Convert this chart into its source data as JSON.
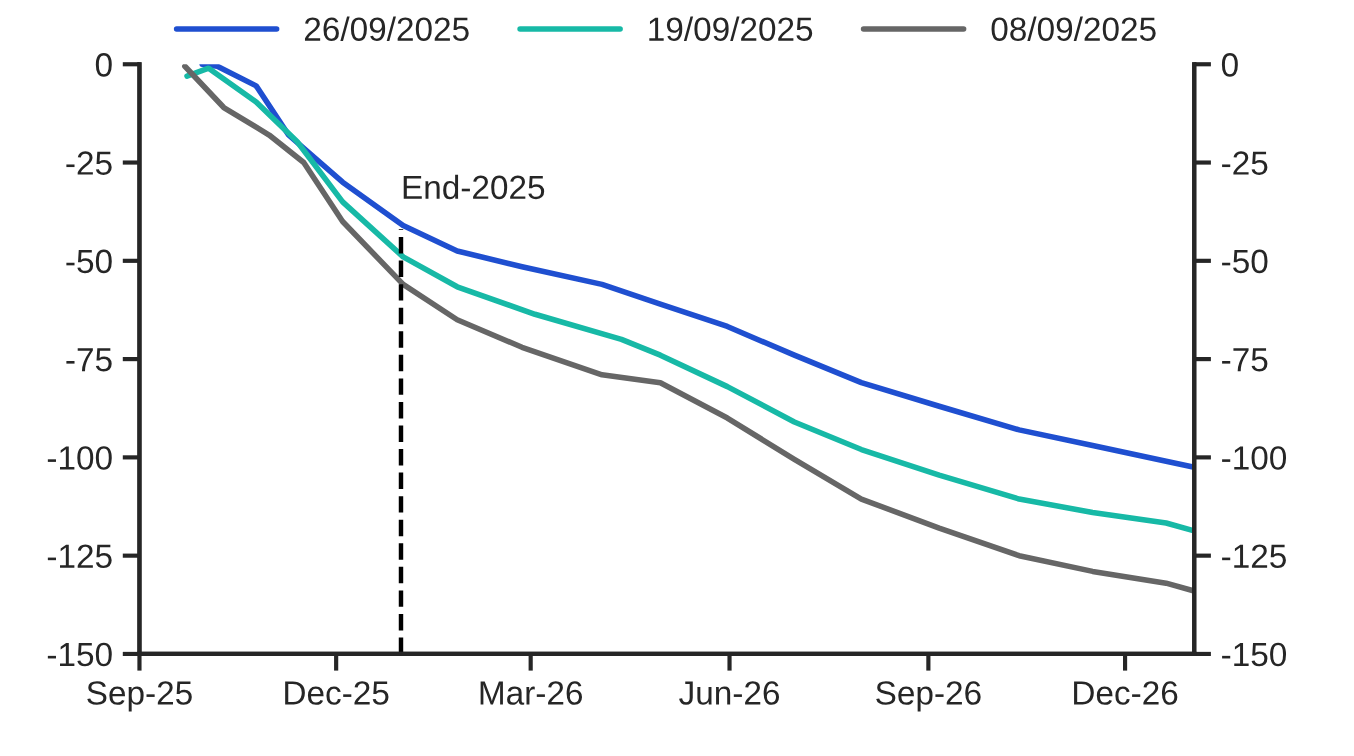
{
  "chart_data": {
    "type": "line",
    "xlim": [
      "2025-09-01",
      "2027-01-02"
    ],
    "xticks": [
      {
        "value": "2025-09-01",
        "label": "Sep-25"
      },
      {
        "value": "2025-12-01",
        "label": "Dec-25"
      },
      {
        "value": "2026-03-01",
        "label": "Mar-26"
      },
      {
        "value": "2026-06-01",
        "label": "Jun-26"
      },
      {
        "value": "2026-09-01",
        "label": "Sep-26"
      },
      {
        "value": "2026-12-01",
        "label": "Dec-26"
      }
    ],
    "ylim": [
      -150,
      0
    ],
    "yticks": [
      -150,
      -125,
      -100,
      -75,
      -50,
      -25,
      0
    ],
    "y2lim": [
      -150,
      0
    ],
    "y2ticks": [
      -150,
      -125,
      -100,
      -75,
      -50,
      -25,
      0
    ],
    "grid": false,
    "legend": "top",
    "marker": "none",
    "line_style": "solid",
    "ref_lines": [
      {
        "axis": "x",
        "value": "2025-12-31",
        "label": "End-2025",
        "color": "#000000",
        "line_style": "dashed"
      }
    ],
    "series": [
      {
        "name": "26/09/2025",
        "color": "#1f4fd0",
        "x": [
          "2025-09-30",
          "2025-10-07",
          "2025-10-25",
          "2025-11-09",
          "2025-12-04",
          "2026-01-01",
          "2026-01-26",
          "2026-02-25",
          "2026-04-03",
          "2026-04-30",
          "2026-05-31",
          "2026-07-01",
          "2026-08-01",
          "2026-09-06",
          "2026-10-13",
          "2026-11-16",
          "2026-12-20",
          "2027-01-02"
        ],
        "values": [
          0,
          -0.5,
          -5.5,
          -18,
          -30,
          -41,
          -47.5,
          -51.5,
          -56,
          -61,
          -66.7,
          -74,
          -81,
          -87,
          -93,
          -97,
          -101,
          -102.5
        ]
      },
      {
        "name": "19/09/2025",
        "color": "#17b9a6",
        "x": [
          "2025-09-23",
          "2025-10-03",
          "2025-10-25",
          "2025-11-13",
          "2025-12-04",
          "2026-01-01",
          "2026-01-26",
          "2026-03-03",
          "2026-04-12",
          "2026-04-30",
          "2026-05-31",
          "2026-07-01",
          "2026-08-01",
          "2026-09-06",
          "2026-10-13",
          "2026-11-16",
          "2026-12-20",
          "2027-01-02"
        ],
        "values": [
          -3,
          -1,
          -9.6,
          -19.7,
          -35,
          -49,
          -56.6,
          -63.6,
          -70,
          -74,
          -82,
          -91,
          -98,
          -104.5,
          -110.6,
          -114,
          -116.7,
          -118.7
        ]
      },
      {
        "name": "08/09/2025",
        "color": "#666666",
        "x": [
          "2025-09-22",
          "2025-10-10",
          "2025-10-31",
          "2025-11-16",
          "2025-12-04",
          "2026-01-01",
          "2026-01-26",
          "2026-02-25",
          "2026-04-03",
          "2026-04-30",
          "2026-05-31",
          "2026-07-01",
          "2026-08-01",
          "2026-09-06",
          "2026-10-13",
          "2026-11-16",
          "2026-12-20",
          "2027-01-02"
        ],
        "values": [
          -0.5,
          -11,
          -18,
          -25,
          -40,
          -56,
          -65,
          -72,
          -79,
          -81,
          -90,
          -100.5,
          -110.6,
          -118,
          -125,
          -129,
          -132,
          -134
        ]
      }
    ]
  }
}
